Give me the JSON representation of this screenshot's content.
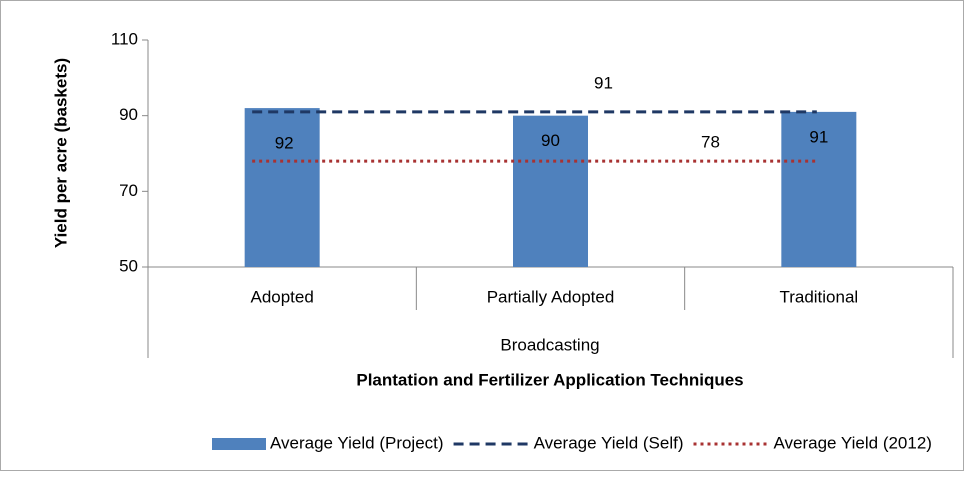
{
  "chart_data": {
    "type": "bar",
    "y_label": "Yield per acre (baskets)",
    "x_label": "Plantation and Fertilizer Application Techniques",
    "group_label": "Broadcasting",
    "categories": [
      "Adopted",
      "Partially Adopted",
      "Traditional"
    ],
    "series": [
      {
        "name": "Average Yield (Project)",
        "type": "bar",
        "color": "#4f81bd",
        "values": [
          92,
          90,
          91
        ]
      },
      {
        "name": "Average Yield (Self)",
        "type": "line",
        "style": "dashed",
        "color": "#1f3864",
        "values": [
          91,
          91,
          91
        ]
      },
      {
        "name": "Average Yield (2012)",
        "type": "line",
        "style": "dotted",
        "color": "#a83232",
        "values": [
          78,
          78,
          78
        ]
      }
    ],
    "ylim": [
      50,
      110
    ],
    "yticks": [
      50,
      70,
      90,
      110
    ],
    "legend": "bottom"
  }
}
